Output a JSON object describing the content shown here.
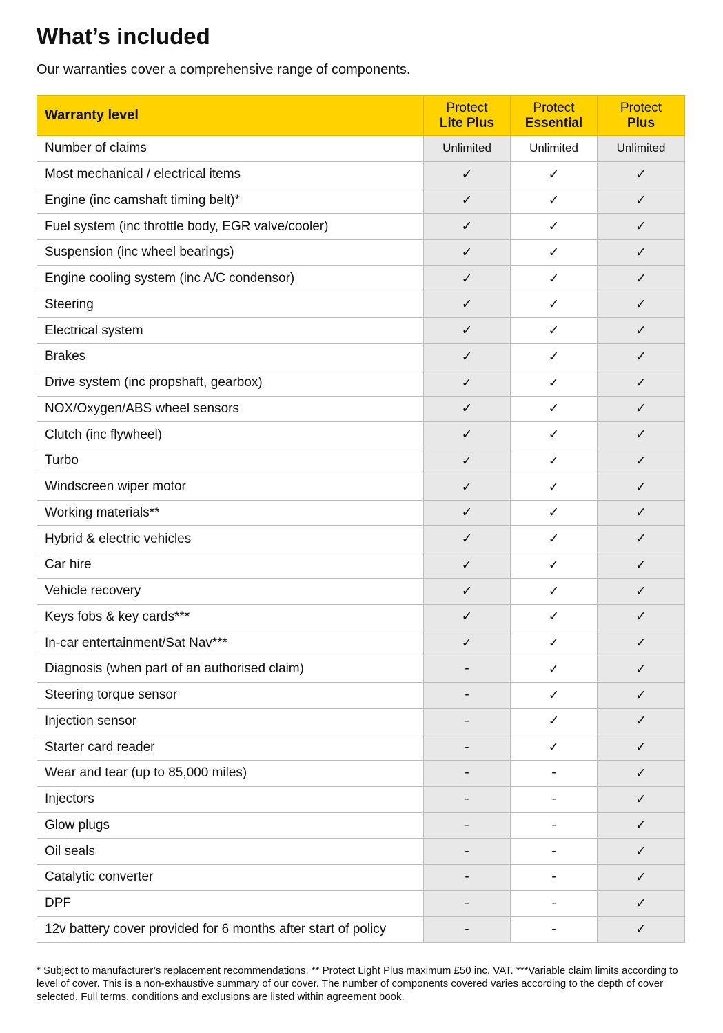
{
  "title": "What’s included",
  "subtitle": "Our warranties cover a comprehensive range of components.",
  "colors": {
    "header": "#ffd200",
    "shaded_column": "#e8e8e8"
  },
  "table": {
    "header": {
      "label": "Warranty level",
      "columns": [
        {
          "line1": "Protect",
          "line2": "Lite Plus"
        },
        {
          "line1": "Protect",
          "line2": "Essential"
        },
        {
          "line1": "Protect",
          "line2": "Plus"
        }
      ]
    },
    "rows": [
      {
        "label": "Number of claims",
        "values": [
          "Unlimited",
          "Unlimited",
          "Unlimited"
        ]
      },
      {
        "label": "Most mechanical / electrical items",
        "values": [
          "✓",
          "✓",
          "✓"
        ]
      },
      {
        "label": "Engine (inc camshaft timing belt)*",
        "values": [
          "✓",
          "✓",
          "✓"
        ]
      },
      {
        "label": "Fuel system (inc throttle body, EGR valve/cooler)",
        "values": [
          "✓",
          "✓",
          "✓"
        ]
      },
      {
        "label": "Suspension (inc wheel bearings)",
        "values": [
          "✓",
          "✓",
          "✓"
        ]
      },
      {
        "label": "Engine cooling system (inc A/C condensor)",
        "values": [
          "✓",
          "✓",
          "✓"
        ]
      },
      {
        "label": "Steering",
        "values": [
          "✓",
          "✓",
          "✓"
        ]
      },
      {
        "label": "Electrical system",
        "values": [
          "✓",
          "✓",
          "✓"
        ]
      },
      {
        "label": "Brakes",
        "values": [
          "✓",
          "✓",
          "✓"
        ]
      },
      {
        "label": "Drive system (inc propshaft, gearbox)",
        "values": [
          "✓",
          "✓",
          "✓"
        ]
      },
      {
        "label": "NOX/Oxygen/ABS wheel sensors",
        "values": [
          "✓",
          "✓",
          "✓"
        ]
      },
      {
        "label": "Clutch (inc flywheel)",
        "values": [
          "✓",
          "✓",
          "✓"
        ]
      },
      {
        "label": "Turbo",
        "values": [
          "✓",
          "✓",
          "✓"
        ]
      },
      {
        "label": "Windscreen wiper motor",
        "values": [
          "✓",
          "✓",
          "✓"
        ]
      },
      {
        "label": "Working materials**",
        "values": [
          "✓",
          "✓",
          "✓"
        ]
      },
      {
        "label": "Hybrid & electric vehicles",
        "values": [
          "✓",
          "✓",
          "✓"
        ]
      },
      {
        "label": "Car hire",
        "values": [
          "✓",
          "✓",
          "✓"
        ]
      },
      {
        "label": "Vehicle recovery",
        "values": [
          "✓",
          "✓",
          "✓"
        ]
      },
      {
        "label": "Keys fobs & key cards***",
        "values": [
          "✓",
          "✓",
          "✓"
        ]
      },
      {
        "label": "In-car entertainment/Sat Nav***",
        "values": [
          "✓",
          "✓",
          "✓"
        ]
      },
      {
        "label": "Diagnosis (when part of an authorised claim)",
        "values": [
          "-",
          "✓",
          "✓"
        ]
      },
      {
        "label": "Steering torque sensor",
        "values": [
          "-",
          "✓",
          "✓"
        ]
      },
      {
        "label": "Injection sensor",
        "values": [
          "-",
          "✓",
          "✓"
        ]
      },
      {
        "label": "Starter card reader",
        "values": [
          "-",
          "✓",
          "✓"
        ]
      },
      {
        "label": "Wear and tear (up to 85,000 miles)",
        "values": [
          "-",
          "-",
          "✓"
        ]
      },
      {
        "label": "Injectors",
        "values": [
          "-",
          "-",
          "✓"
        ]
      },
      {
        "label": "Glow plugs",
        "values": [
          "-",
          "-",
          "✓"
        ]
      },
      {
        "label": "Oil seals",
        "values": [
          "-",
          "-",
          "✓"
        ]
      },
      {
        "label": "Catalytic converter",
        "values": [
          "-",
          "-",
          "✓"
        ]
      },
      {
        "label": "DPF",
        "values": [
          "-",
          "-",
          "✓"
        ]
      },
      {
        "label": "12v battery cover provided for 6 months after start of policy",
        "values": [
          "-",
          "-",
          "✓"
        ]
      }
    ]
  },
  "footnote": "* Subject to manufacturer’s replacement recommendations. ** Protect Light Plus maximum £50 inc. VAT. ***Variable claim limits according to level of cover. This is a non-exhaustive summary of our cover. The number of components covered varies according to the depth of cover selected. Full terms, conditions and exclusions are listed within agreement book."
}
